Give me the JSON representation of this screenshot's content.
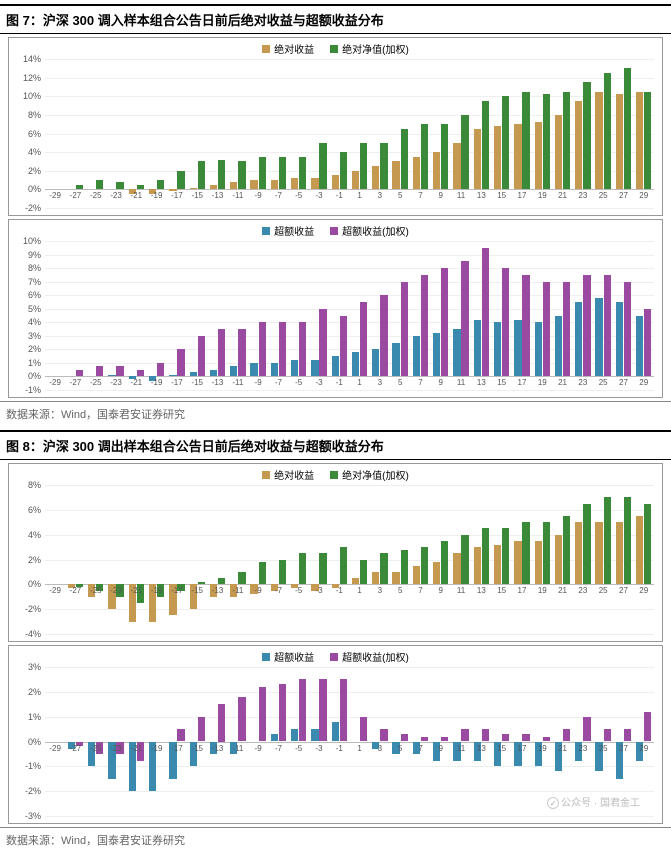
{
  "fig7": {
    "title": "图 7：沪深 300 调入样本组合公告日前后绝对收益与超额收益分布",
    "source": "数据来源：Wind，国泰君安证券研究",
    "x": [
      -29,
      -27,
      -25,
      -23,
      -21,
      -19,
      -17,
      -15,
      -13,
      -11,
      -9,
      -7,
      -5,
      -3,
      -1,
      1,
      3,
      5,
      7,
      9,
      11,
      13,
      15,
      17,
      19,
      21,
      23,
      25,
      27,
      29
    ],
    "panelA": {
      "legend": [
        {
          "label": "绝对收益",
          "color": "#c59a50"
        },
        {
          "label": "绝对净值(加权)",
          "color": "#3a8a3a"
        }
      ],
      "ymin": -2,
      "ymax": 14,
      "ystep": 2,
      "ysuffix": "%",
      "seriesA": [
        0.0,
        0.0,
        0.0,
        0.0,
        -0.5,
        -0.5,
        -0.2,
        0.2,
        0.5,
        0.8,
        1.0,
        1.0,
        1.2,
        1.2,
        1.5,
        2.0,
        2.5,
        3.0,
        3.5,
        4.0,
        5.0,
        6.5,
        6.8,
        7.0,
        7.2,
        8.0,
        9.5,
        10.5,
        10.2,
        10.5
      ],
      "seriesB": [
        0.0,
        0.5,
        1.0,
        0.8,
        0.5,
        1.0,
        2.0,
        3.0,
        3.2,
        3.0,
        3.5,
        3.5,
        3.5,
        5.0,
        4.0,
        5.0,
        5.0,
        6.5,
        7.0,
        7.0,
        8.0,
        9.5,
        10.0,
        10.5,
        10.2,
        10.5,
        11.5,
        12.5,
        13.0,
        10.5
      ]
    },
    "panelB": {
      "legend": [
        {
          "label": "超额收益",
          "color": "#3a8ab0"
        },
        {
          "label": "超额收益(加权)",
          "color": "#9a4aa0"
        }
      ],
      "ymin": -1,
      "ymax": 10,
      "ystep": 1,
      "ysuffix": "%",
      "seriesA": [
        0.0,
        0.0,
        0.0,
        0.1,
        -0.2,
        -0.3,
        0.1,
        0.3,
        0.5,
        0.8,
        1.0,
        1.0,
        1.2,
        1.2,
        1.5,
        1.8,
        2.0,
        2.5,
        3.0,
        3.2,
        3.5,
        4.2,
        4.0,
        4.2,
        4.0,
        4.5,
        5.5,
        5.8,
        5.5,
        4.5
      ],
      "seriesB": [
        0.0,
        0.5,
        0.8,
        0.8,
        0.5,
        1.0,
        2.0,
        3.0,
        3.5,
        3.5,
        4.0,
        4.0,
        4.0,
        5.0,
        4.5,
        5.5,
        6.0,
        7.0,
        7.5,
        8.0,
        8.5,
        9.5,
        8.0,
        7.5,
        7.0,
        7.0,
        7.5,
        7.5,
        7.0,
        5.0
      ]
    }
  },
  "fig8": {
    "title": "图 8：沪深 300 调出样本组合公告日前后绝对收益与超额收益分布",
    "source": "数据来源：Wind，国泰君安证券研究",
    "x": [
      -29,
      -27,
      -25,
      -23,
      -21,
      -19,
      -17,
      -15,
      -13,
      -11,
      -9,
      -7,
      -5,
      -3,
      -1,
      1,
      3,
      5,
      7,
      9,
      11,
      13,
      15,
      17,
      19,
      21,
      23,
      25,
      27,
      29
    ],
    "panelA": {
      "legend": [
        {
          "label": "绝对收益",
          "color": "#c59a50"
        },
        {
          "label": "绝对净值(加权)",
          "color": "#3a8a3a"
        }
      ],
      "ymin": -4,
      "ymax": 8,
      "ystep": 2,
      "ysuffix": "%",
      "seriesA": [
        0.0,
        -0.3,
        -1.0,
        -2.0,
        -3.0,
        -3.0,
        -2.5,
        -2.0,
        -1.0,
        -1.0,
        -0.8,
        -0.5,
        -0.3,
        -0.5,
        -0.3,
        0.5,
        1.0,
        1.0,
        1.5,
        1.8,
        2.5,
        3.0,
        3.2,
        3.5,
        3.5,
        4.0,
        5.0,
        5.0,
        5.0,
        5.5
      ],
      "seriesB": [
        0.0,
        -0.2,
        -0.5,
        -1.0,
        -1.5,
        -1.0,
        -0.5,
        0.2,
        0.5,
        1.0,
        1.8,
        2.0,
        2.5,
        2.5,
        3.0,
        2.0,
        2.5,
        2.8,
        3.0,
        3.5,
        4.0,
        4.5,
        4.5,
        5.0,
        5.0,
        5.5,
        6.5,
        7.0,
        7.0,
        6.5
      ]
    },
    "panelB": {
      "legend": [
        {
          "label": "超额收益",
          "color": "#3a8ab0"
        },
        {
          "label": "超额收益(加权)",
          "color": "#9a4aa0"
        }
      ],
      "ymin": -3,
      "ymax": 3,
      "ystep": 1,
      "ysuffix": "%",
      "seriesA": [
        0.0,
        -0.3,
        -1.0,
        -1.5,
        -2.0,
        -2.0,
        -1.5,
        -1.0,
        -0.5,
        -0.5,
        0.0,
        0.3,
        0.5,
        0.5,
        0.8,
        0.0,
        -0.3,
        -0.5,
        -0.5,
        -0.8,
        -0.8,
        -0.8,
        -1.0,
        -1.0,
        -1.0,
        -1.2,
        -0.8,
        -1.2,
        -1.5,
        -0.8
      ],
      "seriesB": [
        0.0,
        -0.2,
        -0.5,
        -0.5,
        -0.8,
        0.0,
        0.5,
        1.0,
        1.5,
        1.8,
        2.2,
        2.3,
        2.5,
        2.5,
        2.5,
        1.0,
        0.5,
        0.3,
        0.2,
        0.2,
        0.5,
        0.5,
        0.3,
        0.3,
        0.2,
        0.5,
        1.0,
        0.5,
        0.5,
        1.2
      ]
    },
    "watermark": "公众号 · 国君金工"
  }
}
